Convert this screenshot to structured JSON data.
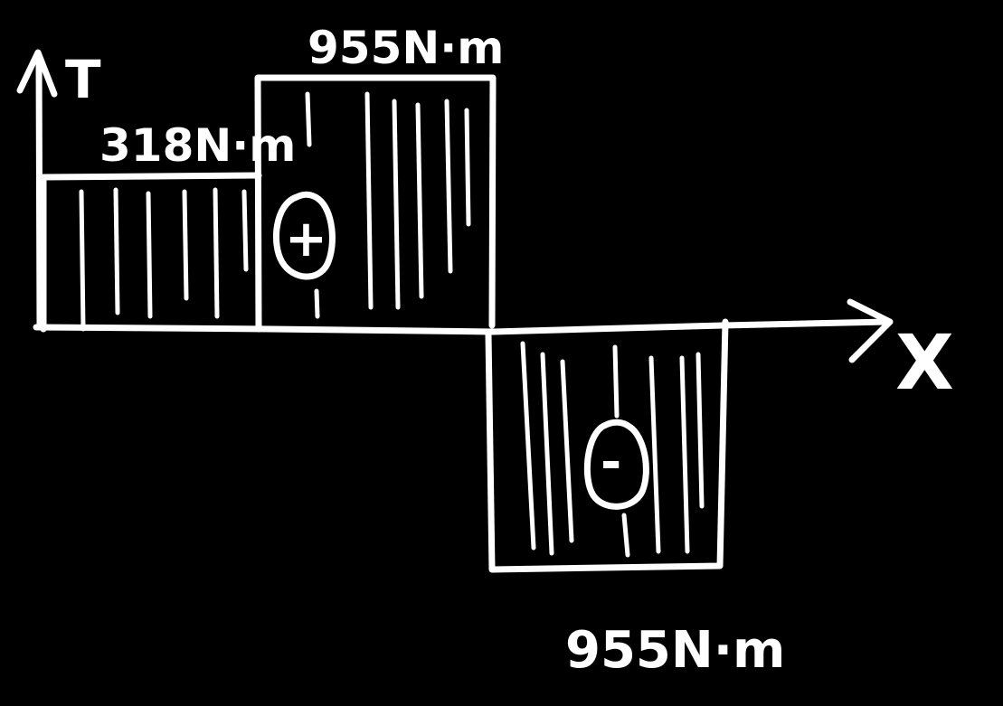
{
  "diagram": {
    "axes": {
      "y_label": "T",
      "x_label": "X"
    },
    "segments": [
      {
        "value_label": "318N·m",
        "sign": "+"
      },
      {
        "value_label": "955N·m",
        "sign": "+"
      },
      {
        "value_label": "955N·m",
        "sign": "-"
      }
    ],
    "colors": {
      "background": "#000000",
      "ink": "#ffffff"
    }
  }
}
